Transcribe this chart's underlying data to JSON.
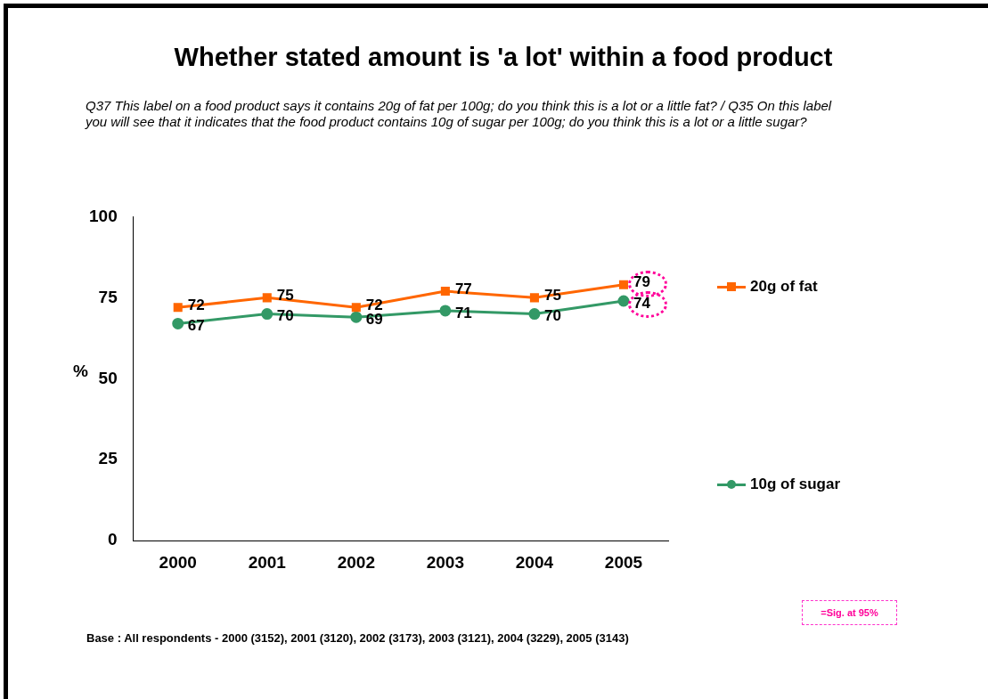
{
  "chart_data": {
    "type": "line",
    "title": "Whether stated amount is 'a lot' within a food product",
    "subtitle": "Q37 This label on a food product says it contains 20g of fat per 100g; do you think this is a lot or a little fat?   /   Q35 On this label you will see that it indicates that the food product contains 10g of sugar per 100g; do you think this is a lot or a little sugar?",
    "ylabel": "%",
    "categories": [
      "2000",
      "2001",
      "2002",
      "2003",
      "2004",
      "2005"
    ],
    "series": [
      {
        "name": "20g of fat",
        "color": "#ff6600",
        "marker": "square",
        "values": [
          72,
          75,
          72,
          77,
          75,
          79
        ]
      },
      {
        "name": "10g of sugar",
        "color": "#339966",
        "marker": "circle",
        "values": [
          67,
          70,
          69,
          71,
          70,
          74
        ]
      }
    ],
    "ylim": [
      0,
      100
    ],
    "yticks": [
      0,
      25,
      50,
      75,
      100
    ],
    "grid": false,
    "legend": "right",
    "data_labels": true,
    "annotations": [
      "=Sig. at 95%",
      "Base : All respondents - 2000 (3152), 2001 (3120), 2002 (3173), 2003 (3121), 2004 (3229), 2005 (3143)"
    ]
  }
}
